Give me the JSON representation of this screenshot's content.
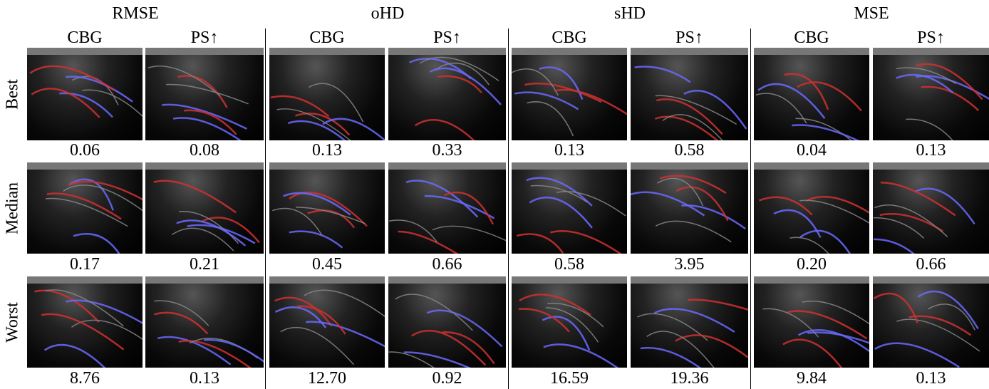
{
  "header": {
    "groups": [
      {
        "title": "RMSE",
        "columns": [
          "CBG",
          "PS↑"
        ]
      },
      {
        "title": "oHD",
        "columns": [
          "CBG",
          "PS↑"
        ]
      },
      {
        "title": "sHD",
        "columns": [
          "CBG",
          "PS↑"
        ]
      },
      {
        "title": "MSE",
        "columns": [
          "CBG",
          "PS↑"
        ]
      }
    ]
  },
  "rows": [
    {
      "label": "Best",
      "values": [
        "0.06",
        "0.08",
        "0.13",
        "0.33",
        "0.13",
        "0.58",
        "0.04",
        "0.13"
      ]
    },
    {
      "label": "Median",
      "values": [
        "0.17",
        "0.21",
        "0.45",
        "0.66",
        "0.58",
        "3.95",
        "0.20",
        "0.66"
      ]
    },
    {
      "label": "Worst",
      "values": [
        "8.76",
        "0.13",
        "12.70",
        "0.92",
        "16.59",
        "19.36",
        "9.84",
        "0.13"
      ]
    }
  ]
}
